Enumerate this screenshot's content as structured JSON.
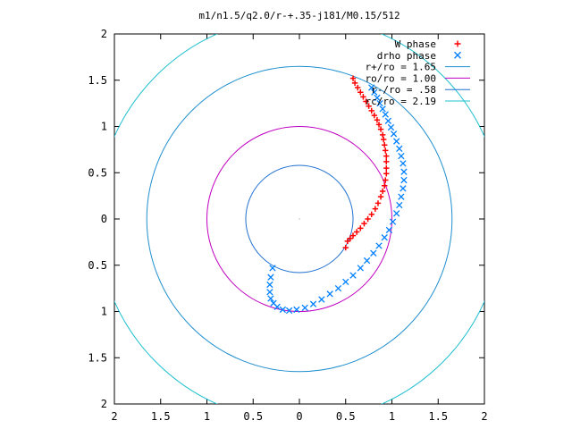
{
  "chart_data": {
    "type": "scatter",
    "title": "m1/n1.5/q2.0/r-+.35-j181/M0.15/512",
    "xlim": [
      -2,
      2
    ],
    "ylim": [
      -2,
      2
    ],
    "xtick_labels": [
      "2",
      "1.5",
      "1",
      "0.5",
      "0",
      "0.5",
      "1",
      "1.5",
      "2"
    ],
    "ytick_labels": [
      "2",
      "1.5",
      "1",
      "0.5",
      "0",
      "0.5",
      "1",
      "1.5",
      "2"
    ],
    "legend_position": "top-right",
    "grid": false,
    "series": [
      {
        "name": "W phase",
        "kind": "points",
        "marker": "plus",
        "color": "#ff0000",
        "x": [
          0.58,
          0.6,
          0.63,
          0.66,
          0.69,
          0.72,
          0.75,
          0.78,
          0.81,
          0.84,
          0.86,
          0.88,
          0.9,
          0.91,
          0.92,
          0.93,
          0.94,
          0.94,
          0.94,
          0.94,
          0.93,
          0.92,
          0.9,
          0.88,
          0.85,
          0.82,
          0.78,
          0.74,
          0.7,
          0.66,
          0.62,
          0.58,
          0.55,
          0.52,
          0.5
        ],
        "y": [
          1.52,
          1.47,
          1.42,
          1.37,
          1.32,
          1.27,
          1.22,
          1.17,
          1.12,
          1.07,
          1.02,
          0.97,
          0.91,
          0.86,
          0.8,
          0.74,
          0.68,
          0.62,
          0.55,
          0.49,
          0.42,
          0.36,
          0.3,
          0.24,
          0.17,
          0.11,
          0.05,
          0.0,
          -0.05,
          -0.1,
          -0.14,
          -0.18,
          -0.21,
          -0.24,
          -0.31
        ]
      },
      {
        "name": "drho phase",
        "kind": "points",
        "marker": "cross",
        "color": "#0080ff",
        "x": [
          0.78,
          0.81,
          0.84,
          0.87,
          0.9,
          0.93,
          0.96,
          0.99,
          1.02,
          1.05,
          1.08,
          1.1,
          1.12,
          1.13,
          1.13,
          1.12,
          1.1,
          1.08,
          1.05,
          1.01,
          0.97,
          0.92,
          0.86,
          0.8,
          0.73,
          0.66,
          0.58,
          0.5,
          0.42,
          0.33,
          0.24,
          0.15,
          0.06,
          -0.03,
          -0.11,
          -0.18,
          -0.24,
          -0.28,
          -0.31,
          -0.32,
          -0.32,
          -0.31,
          -0.29
        ],
        "y": [
          1.42,
          1.37,
          1.31,
          1.25,
          1.19,
          1.13,
          1.06,
          0.99,
          0.92,
          0.84,
          0.76,
          0.68,
          0.6,
          0.51,
          0.42,
          0.33,
          0.24,
          0.15,
          0.06,
          -0.03,
          -0.12,
          -0.2,
          -0.29,
          -0.37,
          -0.45,
          -0.53,
          -0.61,
          -0.68,
          -0.75,
          -0.81,
          -0.87,
          -0.92,
          -0.96,
          -0.98,
          -0.99,
          -0.98,
          -0.95,
          -0.91,
          -0.86,
          -0.79,
          -0.71,
          -0.63,
          -0.53
        ]
      },
      {
        "name": "r+/ro = 1.65",
        "kind": "circle",
        "radius": 1.65,
        "color": "#1f8fcf"
      },
      {
        "name": "ro/ro = 1.00",
        "kind": "circle",
        "radius": 1.0,
        "color": "#c000c0"
      },
      {
        "name": "r-/ro = .58",
        "kind": "circle",
        "radius": 0.58,
        "color": "#2070d0"
      },
      {
        "name": "rc/ro = 2.19",
        "kind": "circle",
        "radius": 2.19,
        "color": "#20c0d0"
      }
    ]
  }
}
